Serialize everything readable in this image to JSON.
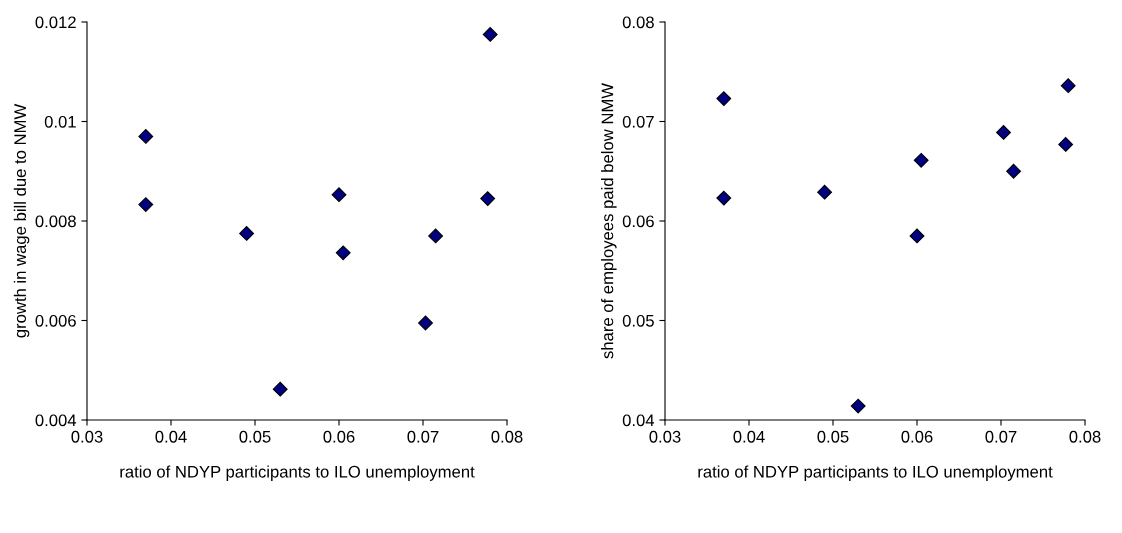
{
  "chart_data": [
    {
      "type": "scatter",
      "xlabel": "ratio of NDYP participants to ILO unemployment",
      "ylabel": "growth in wage bill due to NMW",
      "marker": "diamond",
      "grid": false,
      "legend": false,
      "xlim": [
        0.03,
        0.08
      ],
      "xticks": [
        0.03,
        0.04,
        0.05,
        0.06,
        0.07,
        0.08
      ],
      "ylim": [
        0.004,
        0.012
      ],
      "yticks": [
        0.004,
        0.006,
        0.008,
        0.01,
        0.012
      ],
      "series": [
        {
          "color": "#000080",
          "x": [
            0.037,
            0.037,
            0.049,
            0.053,
            0.06,
            0.0605,
            0.0703,
            0.0715,
            0.0777,
            0.078
          ],
          "values": [
            0.0097,
            0.00833,
            0.00775,
            0.00462,
            0.00853,
            0.00736,
            0.00595,
            0.0077,
            0.00845,
            0.01175
          ]
        }
      ]
    },
    {
      "type": "scatter",
      "xlabel": "ratio of NDYP participants to ILO unemployment",
      "ylabel": "share of employees paid below NMW",
      "marker": "diamond",
      "grid": false,
      "legend": false,
      "xlim": [
        0.03,
        0.08
      ],
      "xticks": [
        0.03,
        0.04,
        0.05,
        0.06,
        0.07,
        0.08
      ],
      "ylim": [
        0.04,
        0.08
      ],
      "yticks": [
        0.04,
        0.05,
        0.06,
        0.07,
        0.08
      ],
      "series": [
        {
          "color": "#000080",
          "x": [
            0.037,
            0.037,
            0.049,
            0.053,
            0.06,
            0.0605,
            0.0703,
            0.0715,
            0.0777,
            0.078
          ],
          "values": [
            0.0723,
            0.0623,
            0.0629,
            0.0414,
            0.0585,
            0.0661,
            0.0689,
            0.065,
            0.0677,
            0.0736
          ]
        }
      ]
    }
  ]
}
